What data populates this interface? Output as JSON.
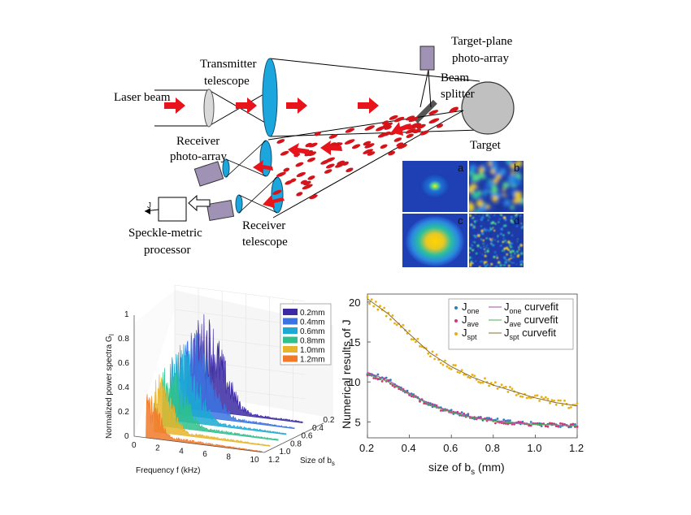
{
  "diagram": {
    "labels": {
      "laser_beam": "Laser beam",
      "transmitter_line1": "Transmitter",
      "transmitter_line2": "telescope",
      "target_plane_line1": "Target-plane",
      "target_plane_line2": "photo-array",
      "beam_line1": "Beam",
      "beam_line2": "splitter",
      "target": "Target",
      "receiver_array_line1": "Receiver",
      "receiver_array_line2": "photo-array",
      "receiver_tel_line1": "Receiver",
      "receiver_tel_line2": "telescope",
      "processor_line1": "Speckle-metric",
      "processor_line2": "processor",
      "j_output": "J"
    },
    "insets": [
      "a",
      "b",
      "c",
      "d"
    ],
    "colors": {
      "beam_arrow": "#e8141b",
      "lens": "#1ba7dd",
      "detector": "#9f92b4",
      "target": "#c0c0c0"
    }
  },
  "chart_data": [
    {
      "type": "line",
      "ylabel": "Normalized power spectra G",
      "ylabel_sub": "I",
      "xlabel": "Frequency f (kHz)",
      "zlabel": "Size of b",
      "zlabel_sub": "s",
      "x_ticks": [
        "0",
        "2",
        "4",
        "6",
        "8",
        "10"
      ],
      "y_ticks": [
        "0",
        "0.2",
        "0.4",
        "0.6",
        "0.8",
        "1"
      ],
      "z_ticks": [
        "1.2",
        "1.0",
        "0.8",
        "0.6",
        "0.4",
        "0.2"
      ],
      "xlim": [
        0,
        11
      ],
      "ylim": [
        0,
        1
      ],
      "series": [
        {
          "name": "0.2mm",
          "color": "#3b2aa3",
          "peak": 0.82
        },
        {
          "name": "0.4mm",
          "color": "#3b73e0",
          "peak": 0.74
        },
        {
          "name": "0.6mm",
          "color": "#1aaad4",
          "peak": 0.65
        },
        {
          "name": "0.8mm",
          "color": "#2fc08c",
          "peak": 0.56
        },
        {
          "name": "1.0mm",
          "color": "#e8b52a",
          "peak": 0.48
        },
        {
          "name": "1.2mm",
          "color": "#f07a2a",
          "peak": 0.4
        }
      ]
    },
    {
      "type": "scatter",
      "ylabel": "Numerical results of J",
      "xlabel": "size of b",
      "xlabel_sub": "s",
      "xlabel_unit": " (mm)",
      "xlim": [
        0.2,
        1.2
      ],
      "ylim": [
        3,
        21
      ],
      "x_ticks": [
        "0.2",
        "0.4",
        "0.6",
        "0.8",
        "1.0",
        "1.2"
      ],
      "y_ticks": [
        "5",
        "10",
        "15",
        "20"
      ],
      "legend": [
        {
          "main": "J",
          "sub": "one",
          "fit_main": "J",
          "fit_sub": "one",
          "fit_suffix": " curvefit"
        },
        {
          "main": "J",
          "sub": "ave",
          "fit_main": "J",
          "fit_sub": "ave",
          "fit_suffix": " curvefit"
        },
        {
          "main": "J",
          "sub": "spt",
          "fit_main": "J",
          "fit_sub": "spt",
          "fit_suffix": " curvefit"
        }
      ],
      "series": [
        {
          "name": "J_one",
          "color": "#2c7fb8",
          "x": [
            0.2,
            0.3,
            0.4,
            0.5,
            0.6,
            0.7,
            0.8,
            0.9,
            1.0,
            1.1,
            1.2
          ],
          "y": [
            11.2,
            10.2,
            8.6,
            7.2,
            6.3,
            5.6,
            5.2,
            4.9,
            4.7,
            4.6,
            4.5
          ]
        },
        {
          "name": "J_ave",
          "color": "#d6337a",
          "x": [
            0.2,
            0.3,
            0.4,
            0.5,
            0.6,
            0.7,
            0.8,
            0.9,
            1.0,
            1.1,
            1.2
          ],
          "y": [
            11.0,
            10.0,
            8.5,
            7.1,
            6.2,
            5.5,
            5.1,
            4.8,
            4.7,
            4.6,
            4.5
          ]
        },
        {
          "name": "J_spt",
          "color": "#e6b012",
          "x": [
            0.2,
            0.3,
            0.4,
            0.5,
            0.6,
            0.7,
            0.8,
            0.9,
            1.0,
            1.1,
            1.2
          ],
          "y": [
            20.4,
            18.5,
            16.0,
            13.6,
            11.9,
            10.6,
            9.6,
            8.8,
            8.0,
            7.4,
            7.0
          ]
        }
      ],
      "fit_colors": [
        "#a64ca6",
        "#4caf50",
        "#8a6d2f"
      ]
    }
  ]
}
